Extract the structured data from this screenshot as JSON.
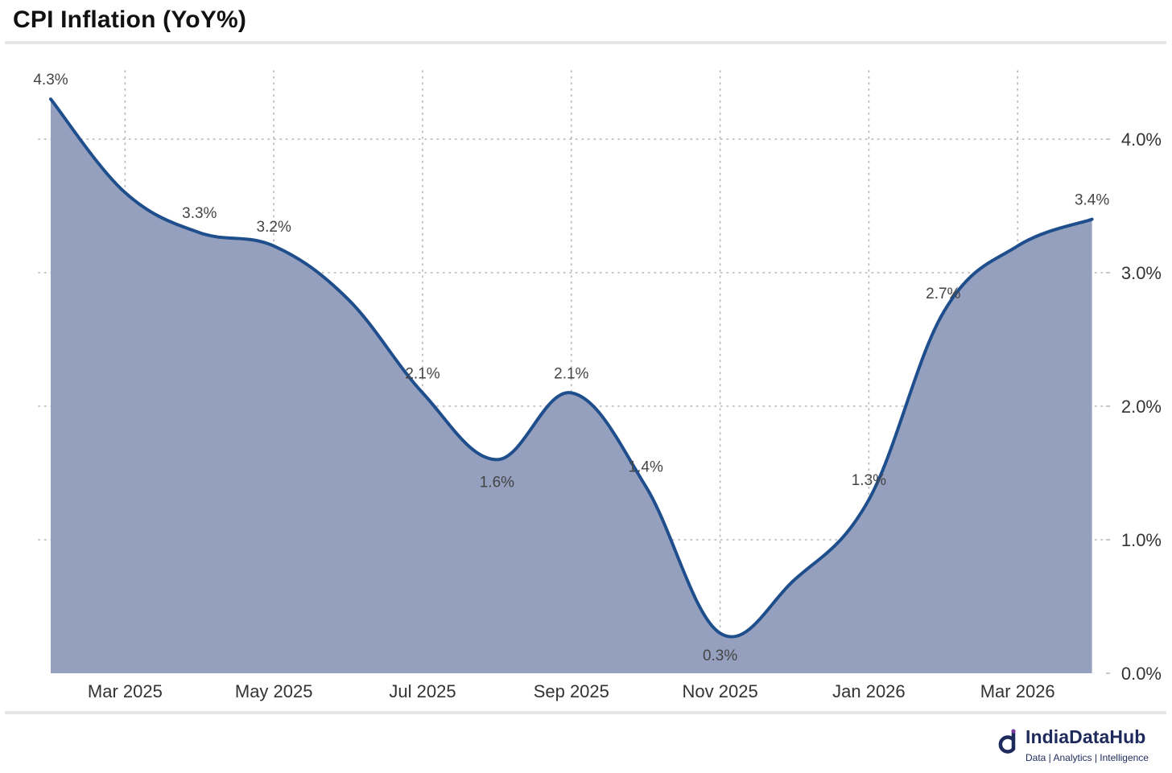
{
  "title": "CPI Inflation (YoY%)",
  "brand": {
    "name": "IndiaDataHub",
    "tagline": "Data | Analytics | Intelligence",
    "color": "#1f2a5c",
    "accent": "#7b3fa0"
  },
  "colors": {
    "line": "#1f4e8c",
    "fill": "#959fbe",
    "grid": "#b4b4b4",
    "label": "#444444"
  },
  "chart_data": {
    "type": "area",
    "title": "CPI Inflation (YoY%)",
    "xlabel": "",
    "ylabel": "",
    "x": [
      "2025-02",
      "2025-03",
      "2025-04",
      "2025-05",
      "2025-06",
      "2025-07",
      "2025-08",
      "2025-09",
      "2025-10",
      "2025-11",
      "2025-12",
      "2026-01",
      "2026-02",
      "2026-03",
      "2026-04"
    ],
    "values": [
      4.3,
      3.6,
      3.3,
      3.2,
      2.8,
      2.1,
      1.6,
      2.1,
      1.4,
      0.3,
      0.7,
      1.3,
      2.7,
      3.2,
      3.4
    ],
    "data_labels": [
      {
        "index": 0,
        "text": "4.3%",
        "pos": "above"
      },
      {
        "index": 2,
        "text": "3.3%",
        "pos": "above"
      },
      {
        "index": 3,
        "text": "3.2%",
        "pos": "above"
      },
      {
        "index": 5,
        "text": "2.1%",
        "pos": "above"
      },
      {
        "index": 6,
        "text": "1.6%",
        "pos": "below"
      },
      {
        "index": 7,
        "text": "2.1%",
        "pos": "above"
      },
      {
        "index": 8,
        "text": "1.4%",
        "pos": "above"
      },
      {
        "index": 9,
        "text": "0.3%",
        "pos": "below"
      },
      {
        "index": 11,
        "text": "1.3%",
        "pos": "above"
      },
      {
        "index": 12,
        "text": "2.7%",
        "pos": "above"
      },
      {
        "index": 14,
        "text": "3.4%",
        "pos": "above"
      }
    ],
    "x_ticks": [
      {
        "index": 1,
        "label": "Mar 2025"
      },
      {
        "index": 3,
        "label": "May 2025"
      },
      {
        "index": 5,
        "label": "Jul 2025"
      },
      {
        "index": 7,
        "label": "Sep 2025"
      },
      {
        "index": 9,
        "label": "Nov 2025"
      },
      {
        "index": 11,
        "label": "Jan 2026"
      },
      {
        "index": 13,
        "label": "Mar 2026"
      }
    ],
    "y_ticks": [
      {
        "value": 0,
        "label": "0.0%"
      },
      {
        "value": 1,
        "label": "1.0%"
      },
      {
        "value": 2,
        "label": "2.0%"
      },
      {
        "value": 3,
        "label": "3.0%"
      },
      {
        "value": 4,
        "label": "4.0%"
      }
    ],
    "ylim": [
      0,
      4.3
    ],
    "y_axis_side": "right",
    "grid": true,
    "legend": "none"
  }
}
